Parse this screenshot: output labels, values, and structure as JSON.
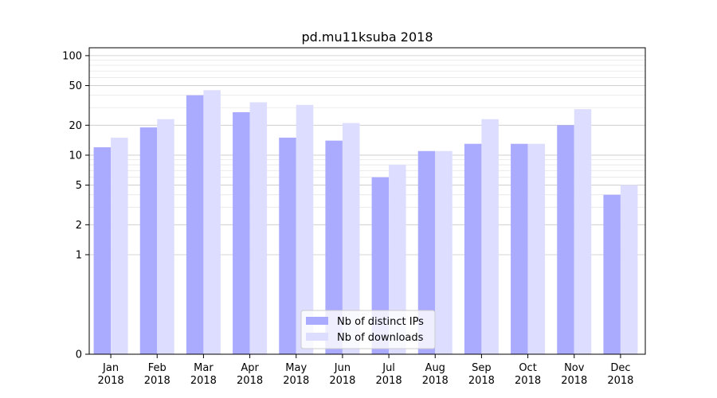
{
  "chart_data": {
    "type": "bar",
    "title": "pd.mu11ksuba 2018",
    "xlabel": "",
    "ylabel": "",
    "y_scale": "symlog",
    "ylim": [
      0,
      120
    ],
    "y_ticks": [
      0,
      1,
      2,
      5,
      10,
      20,
      50,
      100
    ],
    "y_tick_labels": [
      "0",
      "1",
      "2",
      "5",
      "10",
      "20",
      "50",
      "100"
    ],
    "grid": "horizontal",
    "legend_position": "bottom-center",
    "categories": [
      [
        "Jan",
        "2018"
      ],
      [
        "Feb",
        "2018"
      ],
      [
        "Mar",
        "2018"
      ],
      [
        "Apr",
        "2018"
      ],
      [
        "May",
        "2018"
      ],
      [
        "Jun",
        "2018"
      ],
      [
        "Jul",
        "2018"
      ],
      [
        "Aug",
        "2018"
      ],
      [
        "Sep",
        "2018"
      ],
      [
        "Oct",
        "2018"
      ],
      [
        "Nov",
        "2018"
      ],
      [
        "Dec",
        "2018"
      ]
    ],
    "series": [
      {
        "name": "Nb of distinct IPs",
        "color": "#aaaaff",
        "values": [
          12,
          19,
          40,
          27,
          15,
          14,
          6,
          11,
          13,
          13,
          20,
          4
        ]
      },
      {
        "name": "Nb of downloads",
        "color": "#ddddff",
        "values": [
          15,
          23,
          45,
          34,
          32,
          21,
          8,
          11,
          23,
          13,
          29,
          5
        ]
      }
    ]
  }
}
